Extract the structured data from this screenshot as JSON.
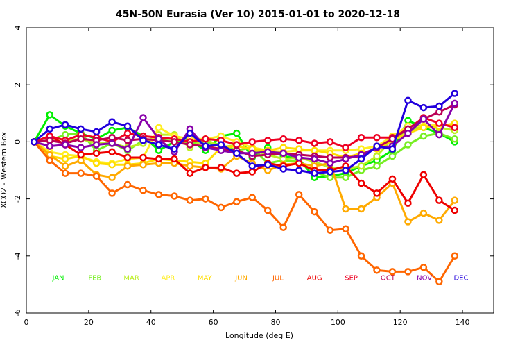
{
  "chart_data": {
    "type": "line",
    "title": "45N-50N Eurasia (Ver 10)   2015-01-01 to 2020-12-18",
    "xlabel": "Longitude (deg E)",
    "ylabel": "XCO2 - Western Box",
    "xlim": [
      0,
      150
    ],
    "ylim": [
      -6,
      4
    ],
    "xticks": [
      0,
      20,
      40,
      60,
      80,
      100,
      120,
      140
    ],
    "yticks": [
      -6,
      -4,
      -2,
      0,
      2,
      4
    ],
    "grid": false,
    "legend_position": "bottom",
    "x": [
      2.5,
      7.5,
      12.5,
      17.5,
      22.5,
      27.5,
      32.5,
      37.5,
      42.5,
      47.5,
      52.5,
      57.5,
      62.5,
      67.5,
      72.5,
      77.5,
      82.5,
      87.5,
      92.5,
      97.5,
      102.5,
      107.5,
      112.5,
      117.5,
      122.5,
      127.5,
      132.5,
      137.5
    ],
    "series": [
      {
        "name": "JAN",
        "color": "#00ee00",
        "values": [
          0,
          0.95,
          0.55,
          0.3,
          0.1,
          0.4,
          0.5,
          0.2,
          -0.3,
          0.0,
          0.05,
          -0.3,
          0.2,
          0.3,
          -0.55,
          -0.2,
          -0.5,
          -0.6,
          -1.25,
          -1.2,
          -1.1,
          -0.85,
          -0.65,
          -0.3,
          0.75,
          0.5,
          0.3,
          0.0
        ]
      },
      {
        "name": "FEB",
        "color": "#77ee22",
        "values": [
          0,
          0.05,
          0.25,
          0.3,
          -0.3,
          -0.05,
          -0.3,
          0.05,
          0.1,
          0.1,
          -0.05,
          0.0,
          -0.1,
          -0.3,
          -0.2,
          -0.75,
          -0.65,
          -0.7,
          -1.05,
          -1.25,
          -1.25,
          -1.0,
          -0.85,
          -0.5,
          -0.1,
          0.2,
          0.3,
          0.1
        ]
      },
      {
        "name": "MAR",
        "color": "#bbee22",
        "values": [
          0,
          0.2,
          0.05,
          0.1,
          -0.05,
          -0.05,
          -0.2,
          -0.05,
          0.25,
          0.25,
          -0.2,
          0.1,
          -0.2,
          -0.1,
          -0.3,
          -0.45,
          -0.6,
          -0.55,
          -0.7,
          -0.9,
          -0.95,
          -0.85,
          -0.5,
          0.1,
          0.4,
          0.55,
          0.5,
          0.4
        ]
      },
      {
        "name": "APR",
        "color": "#ffee22",
        "values": [
          0,
          -0.35,
          -0.45,
          -0.5,
          -0.7,
          -0.75,
          -0.6,
          -0.55,
          0.5,
          0.2,
          0.1,
          0.1,
          0.2,
          0.0,
          -0.2,
          -0.3,
          -0.35,
          -0.3,
          -0.3,
          -0.3,
          -0.3,
          -0.25,
          -0.15,
          0.2,
          0.55,
          0.55,
          0.6,
          0.6
        ]
      },
      {
        "name": "MAY",
        "color": "#ffdd00",
        "values": [
          0,
          -0.5,
          -0.6,
          -0.5,
          -0.75,
          -0.8,
          -0.8,
          -0.75,
          -0.6,
          -0.65,
          -0.7,
          -0.75,
          -0.2,
          -0.15,
          -0.25,
          -0.3,
          -0.2,
          -0.25,
          -0.3,
          -0.4,
          -0.55,
          -0.4,
          -0.25,
          0.05,
          0.3,
          0.5,
          0.55,
          0.65
        ]
      },
      {
        "name": "JUN",
        "color": "#ffaa00",
        "values": [
          0,
          -0.45,
          -0.85,
          -0.65,
          -1.15,
          -1.25,
          -0.85,
          -0.8,
          -0.75,
          -0.75,
          -0.85,
          -0.9,
          -0.95,
          -0.5,
          -0.75,
          -1.0,
          -0.8,
          -0.75,
          -0.85,
          -0.75,
          -2.35,
          -2.35,
          -1.95,
          -1.45,
          -2.8,
          -2.5,
          -2.75,
          -2.05
        ]
      },
      {
        "name": "JUL",
        "color": "#ff6600",
        "values": [
          0,
          -0.65,
          -1.1,
          -1.1,
          -1.2,
          -1.8,
          -1.5,
          -1.7,
          -1.85,
          -1.9,
          -2.05,
          -2.0,
          -2.3,
          -2.1,
          -1.95,
          -2.4,
          -3.0,
          -1.85,
          -2.45,
          -3.1,
          -3.05,
          -4.0,
          -4.5,
          -4.55,
          -4.55,
          -4.4,
          -4.9,
          -4.0
        ]
      },
      {
        "name": "AUG",
        "color": "#ee0000",
        "values": [
          0,
          0.2,
          -0.1,
          -0.45,
          -0.4,
          -0.35,
          -0.55,
          -0.55,
          -0.6,
          -0.6,
          -1.1,
          -0.9,
          -0.9,
          -1.1,
          -1.05,
          -0.75,
          -0.85,
          -0.75,
          -1.0,
          -1.0,
          -0.85,
          -1.45,
          -1.8,
          -1.3,
          -2.15,
          -1.15,
          -2.05,
          -2.4
        ]
      },
      {
        "name": "SEP",
        "color": "#ee0022",
        "values": [
          0,
          0.2,
          0.05,
          0.25,
          0.15,
          0.0,
          0.3,
          0.2,
          0.15,
          0.1,
          0.0,
          0.1,
          0.05,
          -0.1,
          0.0,
          0.05,
          0.1,
          0.05,
          -0.05,
          0.0,
          -0.2,
          0.15,
          0.15,
          0.15,
          0.45,
          0.85,
          0.65,
          0.5
        ]
      },
      {
        "name": "OCT",
        "color": "#bb0055",
        "values": [
          0,
          0.05,
          -0.05,
          0.1,
          0.05,
          0.15,
          0.05,
          0.1,
          0.05,
          0.0,
          -0.1,
          -0.15,
          -0.25,
          -0.3,
          -0.5,
          -0.45,
          -0.4,
          -0.45,
          -0.5,
          -0.55,
          -0.55,
          -0.5,
          -0.2,
          0.1,
          0.45,
          0.8,
          1.05,
          1.3
        ]
      },
      {
        "name": "NOV",
        "color": "#8800aa",
        "values": [
          0,
          -0.15,
          -0.1,
          -0.2,
          -0.1,
          -0.05,
          -0.25,
          0.85,
          0.1,
          -0.35,
          0.45,
          -0.2,
          -0.3,
          -0.4,
          -0.4,
          -0.35,
          -0.4,
          -0.55,
          -0.6,
          -0.75,
          -0.6,
          -0.45,
          -0.2,
          -0.15,
          0.3,
          0.8,
          0.25,
          1.35
        ]
      },
      {
        "name": "DEC",
        "color": "#2200dd",
        "values": [
          0,
          0.45,
          0.6,
          0.45,
          0.35,
          0.7,
          0.55,
          0.05,
          -0.1,
          -0.25,
          0.3,
          -0.15,
          -0.1,
          -0.4,
          -0.85,
          -0.8,
          -0.95,
          -1.0,
          -1.1,
          -1.05,
          -1.0,
          -0.6,
          -0.15,
          -0.25,
          1.45,
          1.2,
          1.25,
          1.7
        ]
      }
    ]
  }
}
